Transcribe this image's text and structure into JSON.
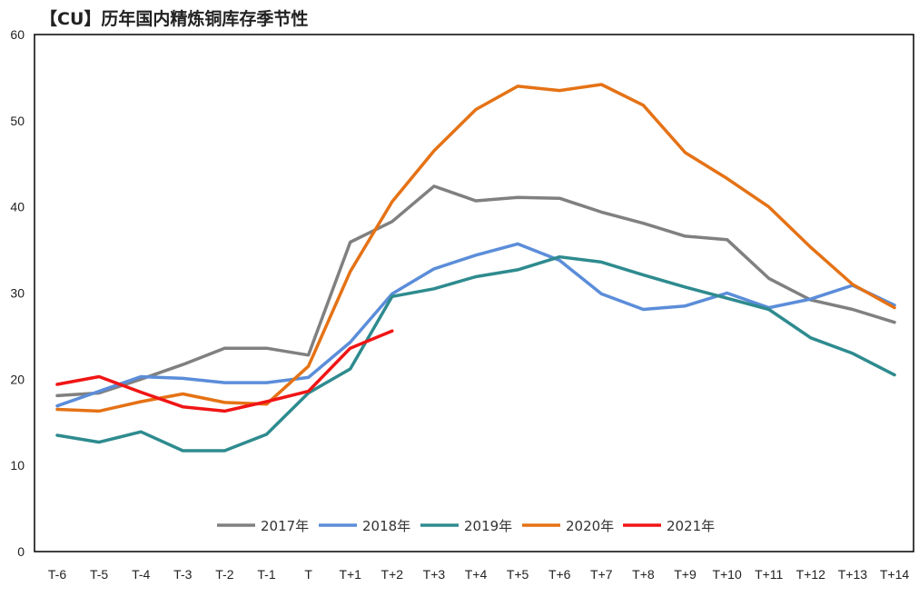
{
  "chart_data": {
    "type": "line",
    "title": "【CU】历年国内精炼铜库存季节性",
    "xlabel": "",
    "ylabel": "",
    "ylim": [
      0,
      60
    ],
    "yticks": [
      0,
      10,
      20,
      30,
      40,
      50,
      60
    ],
    "legend_position": "bottom-center inside plot",
    "grid": false,
    "categories": [
      "T-6",
      "T-5",
      "T-4",
      "T-3",
      "T-2",
      "T-1",
      "T",
      "T+1",
      "T+2",
      "T+3",
      "T+4",
      "T+5",
      "T+6",
      "T+7",
      "T+8",
      "T+9",
      "T+10",
      "T+11",
      "T+12",
      "T+13",
      "T+14"
    ],
    "series": [
      {
        "name": "2017年",
        "color": "#808080",
        "values": [
          18.1,
          18.4,
          20.0,
          21.7,
          23.6,
          23.6,
          22.8,
          35.9,
          38.3,
          42.4,
          40.7,
          41.1,
          41.0,
          39.4,
          38.1,
          36.6,
          36.2,
          31.7,
          29.2,
          28.1,
          26.6
        ]
      },
      {
        "name": "2018年",
        "color": "#5B8DD9",
        "values": [
          16.9,
          18.6,
          20.3,
          20.1,
          19.6,
          19.6,
          20.2,
          24.3,
          29.9,
          32.8,
          34.4,
          35.7,
          33.8,
          29.9,
          28.1,
          28.5,
          30.0,
          28.3,
          29.3,
          30.9,
          28.6
        ]
      },
      {
        "name": "2019年",
        "color": "#2E8B8F",
        "values": [
          13.5,
          12.7,
          13.9,
          11.7,
          11.7,
          13.6,
          18.4,
          21.2,
          29.6,
          30.5,
          31.9,
          32.7,
          34.2,
          33.6,
          32.1,
          30.7,
          29.4,
          28.1,
          24.8,
          23.0,
          20.5
        ]
      },
      {
        "name": "2020年",
        "color": "#E57215",
        "values": [
          16.5,
          16.3,
          17.4,
          18.3,
          17.3,
          17.1,
          21.5,
          32.5,
          40.6,
          46.5,
          51.3,
          54.0,
          53.5,
          54.2,
          51.8,
          46.3,
          43.3,
          40.0,
          35.3,
          31.0,
          28.3
        ]
      },
      {
        "name": "2021年",
        "color": "#F01515",
        "values": [
          19.4,
          20.3,
          18.5,
          16.8,
          16.3,
          17.4,
          18.6,
          23.6,
          25.6,
          null,
          null,
          null,
          null,
          null,
          null,
          null,
          null,
          null,
          null,
          null,
          null
        ]
      }
    ]
  }
}
